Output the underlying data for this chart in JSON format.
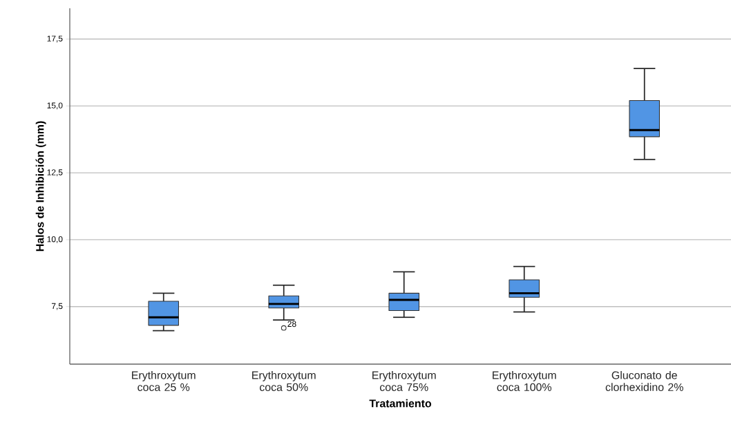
{
  "chart_data": {
    "type": "box",
    "xlabel": "Tratamiento",
    "ylabel": "Halos de Inhibición (mm)",
    "categories": [
      "Erythroxytum coca 25 %",
      "Erythroxytum coca 50%",
      "Erythroxytum coca 75%",
      "Erythroxytum coca 100%",
      "Gluconato de clorhexidino 2%"
    ],
    "color": "#5195e4",
    "boxes": [
      {
        "low": 6.6,
        "q1": 6.8,
        "median": 7.1,
        "q3": 7.7,
        "high": 8.0
      },
      {
        "low": 7.0,
        "q1": 7.45,
        "median": 7.6,
        "q3": 7.9,
        "high": 8.3,
        "outliers": [
          6.7
        ]
      },
      {
        "low": 7.1,
        "q1": 7.35,
        "median": 7.75,
        "q3": 8.0,
        "high": 8.8
      },
      {
        "low": 7.3,
        "q1": 7.85,
        "median": 8.0,
        "q3": 8.5,
        "high": 9.0
      },
      {
        "low": 13.0,
        "q1": 13.85,
        "median": 14.1,
        "q3": 15.2,
        "high": 16.4
      }
    ],
    "annotations": [
      "28"
    ],
    "ylim": [
      5.35,
      18.65
    ],
    "yticks": [
      {
        "value": 7.5,
        "label": "7,5"
      },
      {
        "value": 10.0,
        "label": "10,0"
      },
      {
        "value": 12.5,
        "label": "12,5"
      },
      {
        "value": 15.0,
        "label": "15,0"
      },
      {
        "value": 17.5,
        "label": "17,5"
      }
    ],
    "grid": "y"
  }
}
